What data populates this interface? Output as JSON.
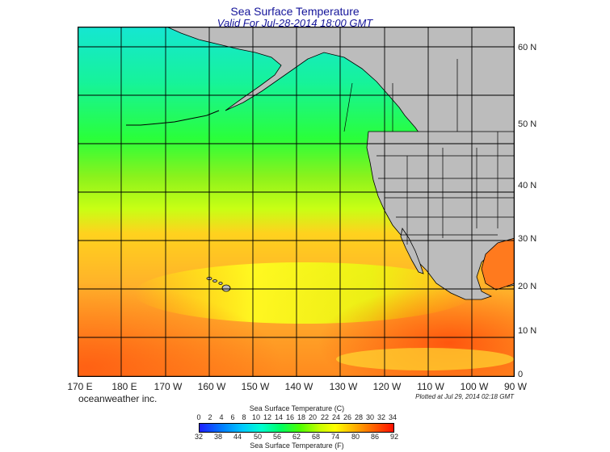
{
  "header": {
    "title": "Sea Surface Temperature",
    "subtitle": "Valid For Jul-28-2014 18:00 GMT"
  },
  "map": {
    "longitude_labels": [
      "170 E",
      "180 E",
      "170 W",
      "160 W",
      "150 W",
      "140 W",
      "130 W",
      "120 W",
      "110 W",
      "100 W",
      "90 W"
    ],
    "latitude_labels": [
      "60 N",
      "50 N",
      "40 N",
      "30 N",
      "20 N",
      "10 N",
      "0"
    ],
    "land_color": "#bcbcbc",
    "grid_color": "#000000"
  },
  "footer": {
    "credit": "oceanweather inc.",
    "plotted": "Plotted at Jul 29, 2014 02:18 GMT"
  },
  "colorbar": {
    "title_c": "Sea Surface Temperature (C)",
    "title_f": "Sea Surface Temperature (F)",
    "celsius_ticks": [
      "0",
      "2",
      "4",
      "6",
      "8",
      "10",
      "12",
      "14",
      "16",
      "18",
      "20",
      "22",
      "24",
      "26",
      "28",
      "30",
      "32",
      "34"
    ],
    "fahrenheit_ticks": [
      "32",
      "38",
      "44",
      "50",
      "56",
      "62",
      "68",
      "74",
      "80",
      "86",
      "92"
    ],
    "colors": [
      "#1f1fff",
      "#0080ff",
      "#00c8ff",
      "#00ffd0",
      "#00ff60",
      "#50ff00",
      "#c8ff00",
      "#ffff00",
      "#ffb000",
      "#ff6000",
      "#ff1000"
    ]
  }
}
